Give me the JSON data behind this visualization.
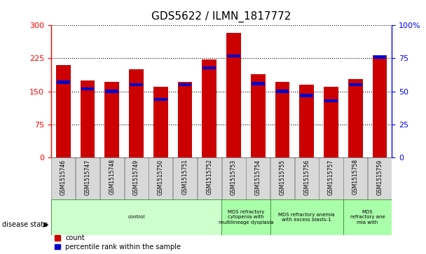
{
  "title": "GDS5622 / ILMN_1817772",
  "samples": [
    "GSM1515746",
    "GSM1515747",
    "GSM1515748",
    "GSM1515749",
    "GSM1515750",
    "GSM1515751",
    "GSM1515752",
    "GSM1515753",
    "GSM1515754",
    "GSM1515755",
    "GSM1515756",
    "GSM1515757",
    "GSM1515758",
    "GSM1515759"
  ],
  "counts": [
    210,
    175,
    172,
    200,
    160,
    172,
    222,
    283,
    190,
    172,
    165,
    160,
    178,
    232
  ],
  "percentiles": [
    57,
    52,
    50,
    55,
    44,
    55,
    68,
    77,
    56,
    50,
    47,
    43,
    55,
    76
  ],
  "bar_color": "#cc0000",
  "pct_color": "#0000cc",
  "left_ylim": [
    0,
    300
  ],
  "right_ylim": [
    0,
    100
  ],
  "left_yticks": [
    0,
    75,
    150,
    225,
    300
  ],
  "right_yticks": [
    0,
    25,
    50,
    75,
    100
  ],
  "right_yticklabels": [
    "0",
    "25",
    "50",
    "75",
    "100%"
  ],
  "disease_groups": [
    {
      "label": "control",
      "start": 0,
      "end": 7,
      "color": "#ccffcc"
    },
    {
      "label": "MDS refractory\ncytopenia with\nmultilineage dysplasia",
      "start": 7,
      "end": 9,
      "color": "#aaffaa"
    },
    {
      "label": "MDS refractory anemia\nwith excess blasts-1",
      "start": 9,
      "end": 12,
      "color": "#aaffaa"
    },
    {
      "label": "MDS\nrefractory ane\nmia with",
      "start": 12,
      "end": 14,
      "color": "#aaffaa"
    }
  ],
  "disease_state_label": "disease state",
  "legend_count_label": "count",
  "legend_pct_label": "percentile rank within the sample",
  "fig_width": 6.08,
  "fig_height": 3.63,
  "dpi": 100
}
